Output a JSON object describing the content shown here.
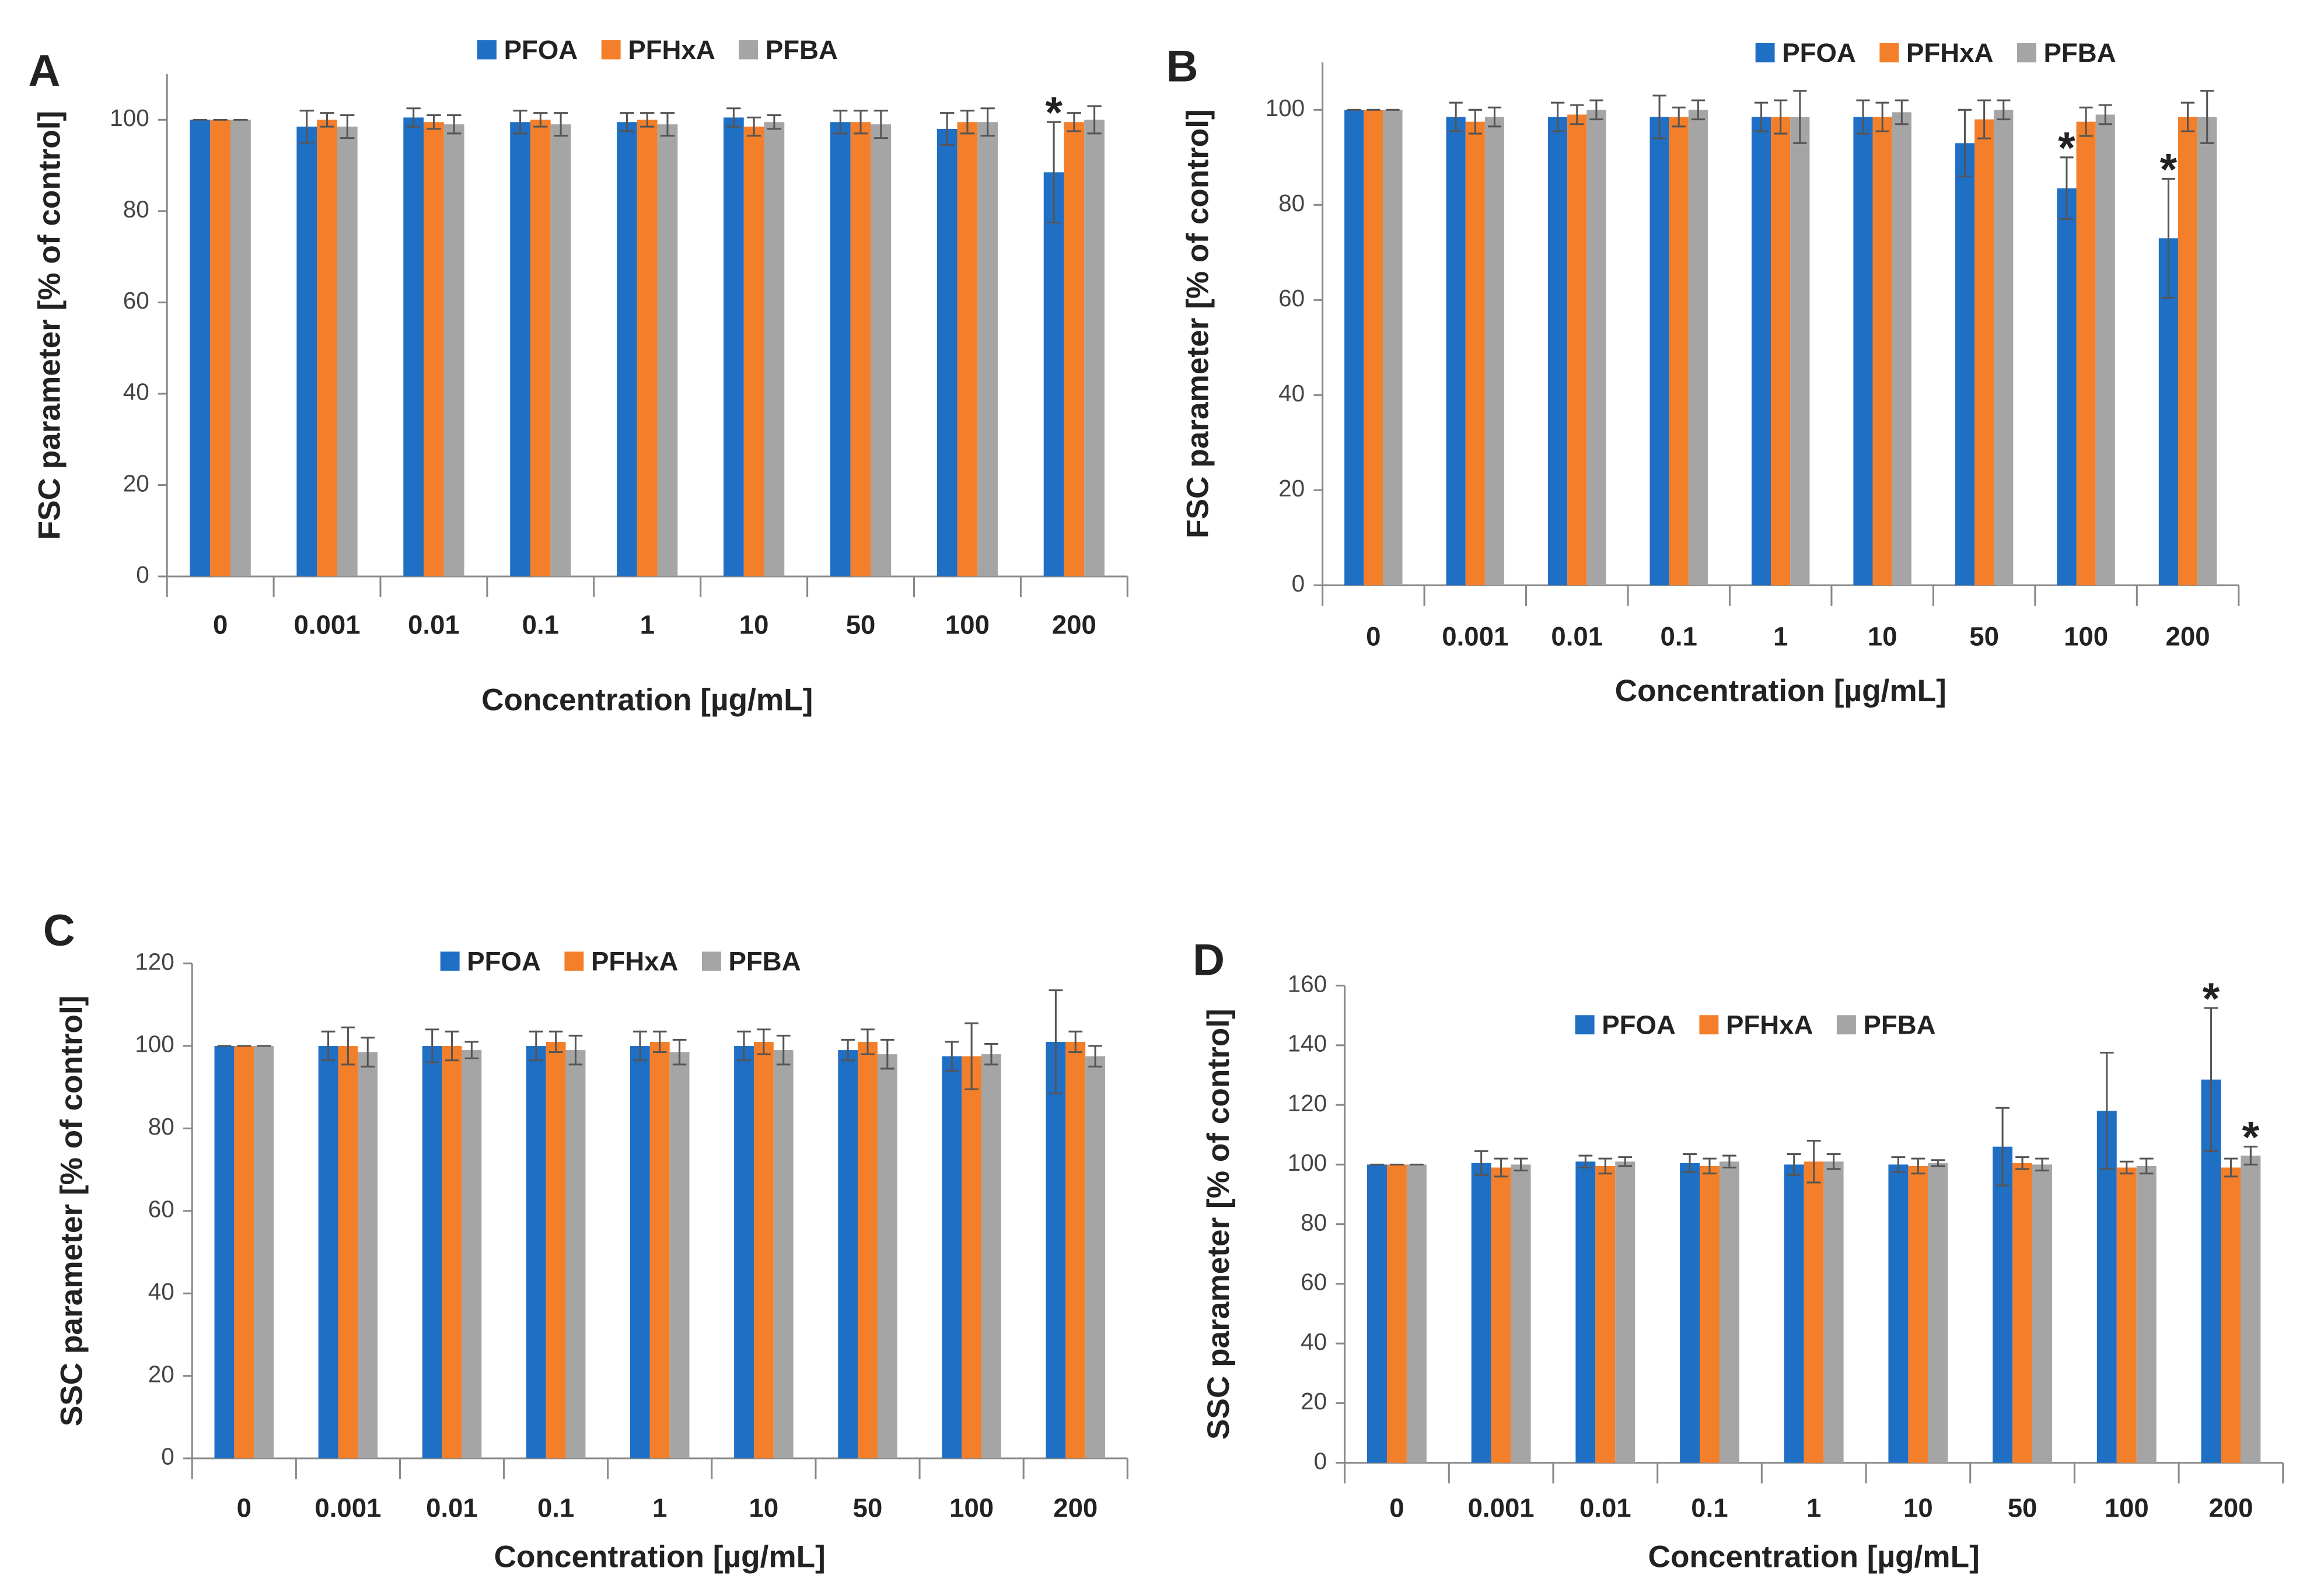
{
  "chart_data": [
    {
      "type": "bar",
      "panel": "A",
      "x_label": "Concentration [µg/mL]",
      "y_label": "FSC parameter [% of control]",
      "categories": [
        "0",
        "0.001",
        "0.01",
        "0.1",
        "1",
        "10",
        "50",
        "100",
        "200"
      ],
      "ylim": [
        0,
        110
      ],
      "yticks": [
        0,
        20,
        40,
        60,
        80,
        100
      ],
      "series": [
        {
          "name": "PFOA",
          "color": "#1f6fc5",
          "values": [
            100,
            98.5,
            100.5,
            99.5,
            99.5,
            100.5,
            99.5,
            98,
            88.5
          ],
          "errors": [
            0,
            3.5,
            2,
            2.5,
            2,
            2,
            2.5,
            3.5,
            11
          ],
          "annotations": [
            null,
            null,
            null,
            null,
            null,
            null,
            null,
            null,
            "*"
          ]
        },
        {
          "name": "PFHxA",
          "color": "#f47f2a",
          "values": [
            100,
            100,
            99.5,
            100,
            100,
            98.5,
            99.5,
            99.5,
            99.5
          ],
          "errors": [
            0,
            1.5,
            1.5,
            1.5,
            1.5,
            2,
            2.5,
            2.5,
            2
          ]
        },
        {
          "name": "PFBA",
          "color": "#a5a5a5",
          "values": [
            100,
            98.5,
            99,
            99,
            99,
            99.5,
            99,
            99.5,
            100
          ],
          "errors": [
            0,
            2.5,
            2,
            2.5,
            2.5,
            1.5,
            3,
            3,
            3
          ]
        }
      ]
    },
    {
      "type": "bar",
      "panel": "B",
      "x_label": "Concentration [µg/mL]",
      "y_label": "FSC  parameter [% of control]",
      "categories": [
        "0",
        "0.001",
        "0.01",
        "0.1",
        "1",
        "10",
        "50",
        "100",
        "200"
      ],
      "ylim": [
        0,
        110
      ],
      "yticks": [
        0,
        20,
        40,
        60,
        80,
        100
      ],
      "series": [
        {
          "name": "PFOA",
          "color": "#1f6fc5",
          "values": [
            100,
            98.5,
            98.5,
            98.5,
            98.5,
            98.5,
            93,
            83.5,
            73
          ],
          "errors": [
            0,
            3,
            3,
            4.5,
            3,
            3.5,
            7,
            6.5,
            12.5
          ],
          "annotations": [
            null,
            null,
            null,
            null,
            null,
            null,
            null,
            "*",
            "*"
          ]
        },
        {
          "name": "PFHxA",
          "color": "#f47f2a",
          "values": [
            100,
            97.5,
            99,
            98.5,
            98.5,
            98.5,
            98,
            97.5,
            98.5
          ],
          "errors": [
            0,
            2.5,
            2,
            2,
            3.5,
            3,
            4,
            3,
            3
          ]
        },
        {
          "name": "PFBA",
          "color": "#a5a5a5",
          "values": [
            100,
            98.5,
            100,
            100,
            98.5,
            99.5,
            100,
            99,
            98.5
          ],
          "errors": [
            0,
            2,
            2,
            2,
            5.5,
            2.5,
            2,
            2,
            5.5
          ]
        }
      ]
    },
    {
      "type": "bar",
      "panel": "C",
      "x_label": "Concentration [µg/mL]",
      "y_label": "SSC parameter [% of control]",
      "categories": [
        "0",
        "0.001",
        "0.01",
        "0.1",
        "1",
        "10",
        "50",
        "100",
        "200"
      ],
      "ylim": [
        0,
        120
      ],
      "yticks": [
        0,
        20,
        40,
        60,
        80,
        100,
        120
      ],
      "series": [
        {
          "name": "PFOA",
          "color": "#1f6fc5",
          "values": [
            100,
            100,
            100,
            100,
            100,
            100,
            99,
            97.5,
            101
          ],
          "errors": [
            0,
            3.5,
            4,
            3.5,
            3.5,
            3.5,
            2.5,
            3.5,
            12.5
          ]
        },
        {
          "name": "PFHxA",
          "color": "#f47f2a",
          "values": [
            100,
            100,
            100,
            101,
            101,
            101,
            101,
            97.5,
            101
          ],
          "errors": [
            0,
            4.5,
            3.5,
            2.5,
            2.5,
            3,
            3,
            8,
            2.5
          ]
        },
        {
          "name": "PFBA",
          "color": "#a5a5a5",
          "values": [
            100,
            98.5,
            99,
            99,
            98.5,
            99,
            98,
            98,
            97.5
          ],
          "errors": [
            0,
            3.5,
            2,
            3.5,
            3,
            3.5,
            3.5,
            2.5,
            2.5
          ]
        }
      ]
    },
    {
      "type": "bar",
      "panel": "D",
      "x_label": "Concentration [µg/mL]",
      "y_label": "SSC parameter [% of control]",
      "categories": [
        "0",
        "0.001",
        "0.01",
        "0.1",
        "1",
        "10",
        "50",
        "100",
        "200"
      ],
      "ylim": [
        0,
        160
      ],
      "yticks": [
        0,
        20,
        40,
        60,
        80,
        100,
        120,
        140,
        160
      ],
      "series": [
        {
          "name": "PFOA",
          "color": "#1f6fc5",
          "values": [
            100,
            100.5,
            101,
            100.5,
            100,
            100,
            106,
            118,
            128.5
          ],
          "errors": [
            0,
            4,
            2,
            3,
            3.5,
            2.5,
            13,
            19.5,
            24
          ],
          "annotations": [
            null,
            null,
            null,
            null,
            null,
            null,
            null,
            null,
            "*"
          ]
        },
        {
          "name": "PFHxA",
          "color": "#f47f2a",
          "values": [
            100,
            99,
            99.5,
            99.5,
            101,
            99.5,
            100.5,
            99,
            99
          ],
          "errors": [
            0,
            3,
            2.5,
            2.5,
            7,
            2.5,
            2,
            2,
            3
          ]
        },
        {
          "name": "PFBA",
          "color": "#a5a5a5",
          "values": [
            100,
            100,
            101,
            101,
            101,
            100.5,
            100,
            99.5,
            103
          ],
          "errors": [
            0,
            2,
            1.5,
            2,
            2.5,
            1,
            2,
            2.5,
            3
          ],
          "annotations": [
            null,
            null,
            null,
            null,
            null,
            null,
            null,
            null,
            "*"
          ]
        }
      ]
    }
  ]
}
